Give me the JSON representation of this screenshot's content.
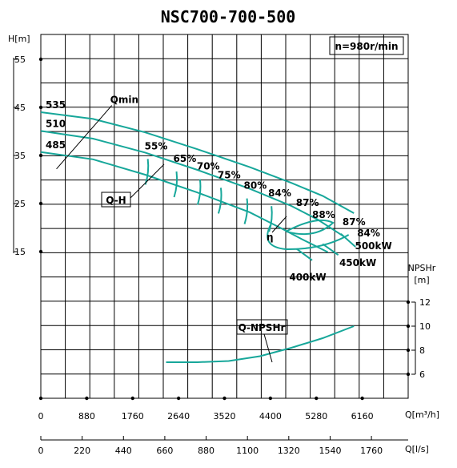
{
  "chart_data": {
    "type": "line",
    "title": "NSC700-700-500",
    "speed_label": "n=980r/min",
    "y_axis_head": {
      "label": "H[m]",
      "ticks": [
        "55",
        "45",
        "35",
        "25",
        "15"
      ]
    },
    "y_axis_npsh": {
      "label_line1": "NPSHr",
      "label_line2": "[m]",
      "ticks": [
        "12",
        "10",
        "8",
        "6"
      ]
    },
    "x_axis_q_m3h": {
      "label": "Q[m³/h]",
      "ticks": [
        "0",
        "880",
        "1760",
        "2640",
        "3520",
        "4400",
        "5280",
        "6160"
      ]
    },
    "x_axis_q_ls": {
      "label": "Q[l/s]",
      "ticks": [
        "0",
        "220",
        "440",
        "660",
        "880",
        "1100",
        "1320",
        "1540",
        "1760"
      ]
    },
    "head_curves": [
      {
        "name": "535",
        "x": [
          0,
          1000,
          2000,
          3000,
          4000,
          4800,
          5400,
          6000
        ],
        "y": [
          44,
          42.6,
          39.8,
          36.3,
          32.6,
          29.3,
          26.6,
          23.0
        ]
      },
      {
        "name": "510",
        "x": [
          0,
          1000,
          2000,
          3000,
          4000,
          4800,
          5300,
          5800
        ],
        "y": [
          40.1,
          38.5,
          35.6,
          32.0,
          28.1,
          24.5,
          21.7,
          18.2
        ]
      },
      {
        "name": "485",
        "x": [
          0,
          1000,
          2000,
          3000,
          4000,
          4600,
          5000,
          5500
        ],
        "y": [
          35.7,
          34.2,
          31.0,
          27.3,
          23.2,
          19.9,
          17.6,
          14.9
        ]
      }
    ],
    "qmin_line": {
      "label": "Qmin",
      "x": [
        300,
        1360
      ],
      "y": [
        32.2,
        45.4
      ]
    },
    "efficiency_labels": [
      "55%",
      "65%",
      "70%",
      "75%",
      "80%",
      "84%",
      "87%",
      "88%",
      "87%",
      "84%"
    ],
    "efficiency_points": [
      {
        "label": "55%",
        "x": 2050,
        "y": 35.6
      },
      {
        "label": "65%",
        "x": 2600,
        "y": 33.0
      },
      {
        "label": "70%",
        "x": 3050,
        "y": 31.4
      },
      {
        "label": "75%",
        "x": 3450,
        "y": 29.6
      },
      {
        "label": "80%",
        "x": 3950,
        "y": 27.4
      },
      {
        "label": "84%",
        "x": 4420,
        "y": 25.8
      },
      {
        "label": "87%",
        "x": 4920,
        "y": 23.8
      },
      {
        "label": "88%",
        "x": 5200,
        "y": 21.3
      },
      {
        "label": "87%",
        "x": 5750,
        "y": 19.8
      },
      {
        "label": "84%",
        "x": 6000,
        "y": 17.5
      }
    ],
    "power_labels": [
      "500kW",
      "450kW",
      "400kW"
    ],
    "head_curve_label": "Q-H",
    "efficiency_curve_label": "η",
    "npsh_curve": {
      "label": "Q-NPSHr",
      "x": [
        2400,
        3000,
        3600,
        4200,
        4800,
        5400,
        6000
      ],
      "y": [
        7.0,
        7.0,
        7.1,
        7.5,
        8.2,
        9.0,
        10.0
      ]
    }
  }
}
